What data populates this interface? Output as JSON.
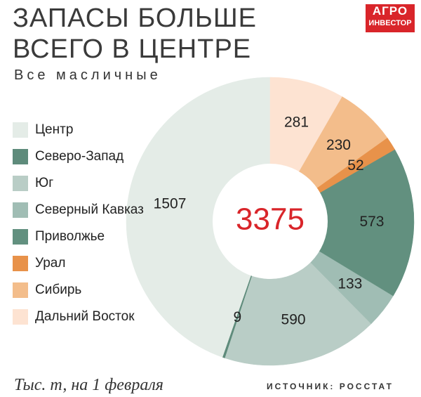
{
  "logo": {
    "top": "АГРО",
    "bottom": "ИНВЕСТОР"
  },
  "note": "Тыс. т, на 1 февраля",
  "source": "ИСТОЧНИК: РОССТАТ",
  "chart_data": {
    "type": "donut",
    "title": "ЗАПАСЫ БОЛЬШЕ ВСЕГО В ЦЕНТРЕ",
    "subtitle": "Все масличные",
    "total": 3375,
    "categories": [
      "Центр",
      "Северо-Запад",
      "Юг",
      "Северный Кавказ",
      "Приволжье",
      "Урал",
      "Сибирь",
      "Дальний Восток"
    ],
    "values": [
      1507,
      9,
      590,
      133,
      573,
      52,
      230,
      281
    ],
    "colors": [
      "#e4ece7",
      "#5e8b7b",
      "#b9cdc6",
      "#a0bdb4",
      "#62907f",
      "#e8924a",
      "#f3bd8b",
      "#fde3d2"
    ],
    "total_color": "#d9252a"
  }
}
